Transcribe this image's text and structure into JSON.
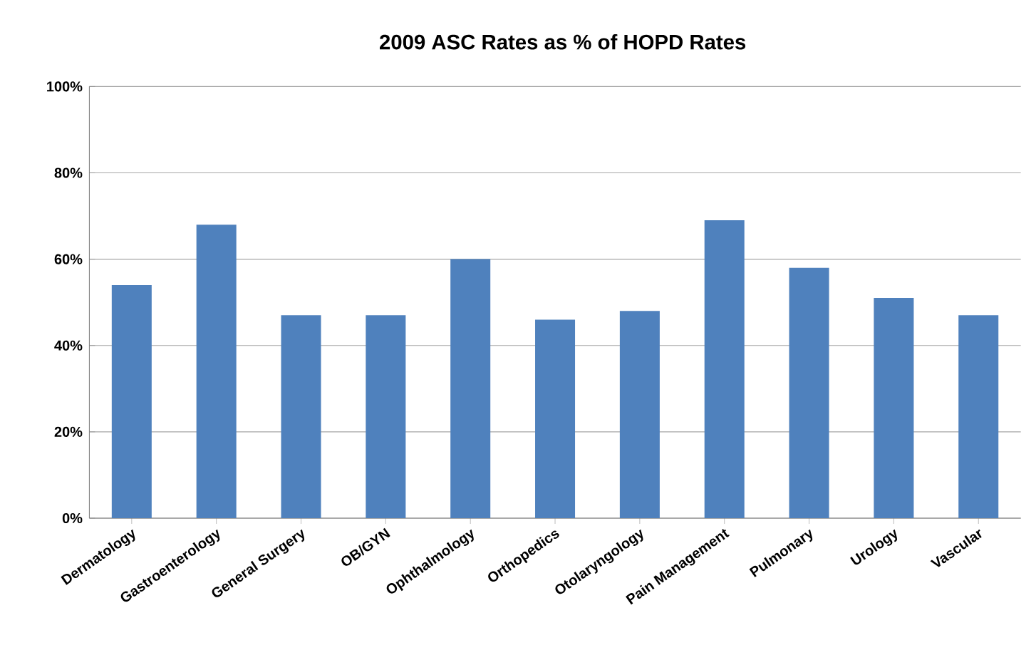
{
  "chart_data": {
    "type": "bar",
    "title": "2009 ASC Rates as % of HOPD Rates",
    "categories": [
      "Dermatology",
      "Gastroenterology",
      "General Surgery",
      "OB/GYN",
      "Ophthalmology",
      "Orthopedics",
      "Otolaryngology",
      "Pain Management",
      "Pulmonary",
      "Urology",
      "Vascular"
    ],
    "values": [
      54,
      68,
      47,
      47,
      60,
      46,
      48,
      69,
      58,
      51,
      47
    ],
    "color": "#4f81bd",
    "ylim": [
      0,
      100
    ],
    "yticks": [
      {
        "value": 0,
        "label": "0%"
      },
      {
        "value": 20,
        "label": "20%"
      },
      {
        "value": 40,
        "label": "40%"
      },
      {
        "value": 60,
        "label": "60%"
      },
      {
        "value": 80,
        "label": "80%"
      },
      {
        "value": 100,
        "label": "100%"
      }
    ],
    "grid": "y"
  }
}
